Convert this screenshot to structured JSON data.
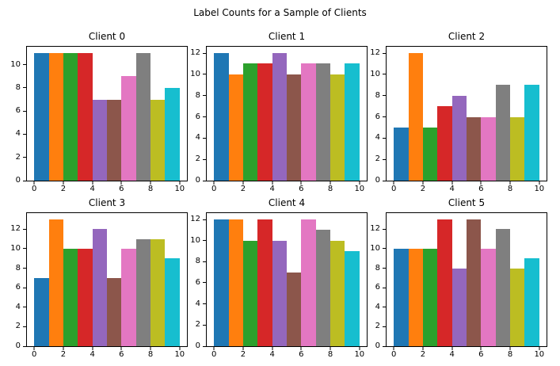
{
  "figure": {
    "suptitle": "Label Counts for a Sample of Clients",
    "background_color": "#ffffff",
    "frame_color": "#000000",
    "text_color": "#000000"
  },
  "palette": [
    "#1f77b4",
    "#ff7f0e",
    "#2ca02c",
    "#d62728",
    "#9467bd",
    "#8c564b",
    "#e377c2",
    "#7f7f7f",
    "#bcbd22",
    "#17becf"
  ],
  "chart_data": [
    {
      "type": "bar",
      "title": "Client 0",
      "categories": [
        0,
        1,
        2,
        3,
        4,
        5,
        6,
        7,
        8,
        9
      ],
      "values": [
        11,
        11,
        11,
        11,
        7,
        7,
        9,
        11,
        7,
        8
      ],
      "xlabel": "",
      "ylabel": "",
      "xticks": [
        0,
        2,
        4,
        6,
        8,
        10
      ],
      "yticks": [
        0,
        2,
        4,
        6,
        8,
        10
      ],
      "xlim": [
        -0.5,
        10.5
      ],
      "ylim": [
        0,
        11.55
      ],
      "grid": false,
      "legend": null
    },
    {
      "type": "bar",
      "title": "Client 1",
      "categories": [
        0,
        1,
        2,
        3,
        4,
        5,
        6,
        7,
        8,
        9
      ],
      "values": [
        12,
        10,
        11,
        11,
        12,
        10,
        11,
        11,
        10,
        11
      ],
      "xlabel": "",
      "ylabel": "",
      "xticks": [
        0,
        2,
        4,
        6,
        8,
        10
      ],
      "yticks": [
        0,
        2,
        4,
        6,
        8,
        10,
        12
      ],
      "xlim": [
        -0.5,
        10.5
      ],
      "ylim": [
        0,
        12.6
      ],
      "grid": false,
      "legend": null
    },
    {
      "type": "bar",
      "title": "Client 2",
      "categories": [
        0,
        1,
        2,
        3,
        4,
        5,
        6,
        7,
        8,
        9
      ],
      "values": [
        5,
        12,
        5,
        7,
        8,
        6,
        6,
        9,
        6,
        9
      ],
      "xlabel": "",
      "ylabel": "",
      "xticks": [
        0,
        2,
        4,
        6,
        8,
        10
      ],
      "yticks": [
        0,
        2,
        4,
        6,
        8,
        10,
        12
      ],
      "xlim": [
        -0.5,
        10.5
      ],
      "ylim": [
        0,
        12.6
      ],
      "grid": false,
      "legend": null
    },
    {
      "type": "bar",
      "title": "Client 3",
      "categories": [
        0,
        1,
        2,
        3,
        4,
        5,
        6,
        7,
        8,
        9
      ],
      "values": [
        7,
        13,
        10,
        10,
        12,
        7,
        10,
        11,
        11,
        9
      ],
      "xlabel": "",
      "ylabel": "",
      "xticks": [
        0,
        2,
        4,
        6,
        8,
        10
      ],
      "yticks": [
        0,
        2,
        4,
        6,
        8,
        10,
        12
      ],
      "xlim": [
        -0.5,
        10.5
      ],
      "ylim": [
        0,
        13.65
      ],
      "grid": false,
      "legend": null
    },
    {
      "type": "bar",
      "title": "Client 4",
      "categories": [
        0,
        1,
        2,
        3,
        4,
        5,
        6,
        7,
        8,
        9
      ],
      "values": [
        12,
        12,
        10,
        12,
        10,
        7,
        12,
        11,
        10,
        9
      ],
      "xlabel": "",
      "ylabel": "",
      "xticks": [
        0,
        2,
        4,
        6,
        8,
        10
      ],
      "yticks": [
        0,
        2,
        4,
        6,
        8,
        10,
        12
      ],
      "xlim": [
        -0.5,
        10.5
      ],
      "ylim": [
        0,
        12.6
      ],
      "grid": false,
      "legend": null
    },
    {
      "type": "bar",
      "title": "Client 5",
      "categories": [
        0,
        1,
        2,
        3,
        4,
        5,
        6,
        7,
        8,
        9
      ],
      "values": [
        10,
        10,
        10,
        13,
        8,
        13,
        10,
        12,
        8,
        9
      ],
      "xlabel": "",
      "ylabel": "",
      "xticks": [
        0,
        2,
        4,
        6,
        8,
        10
      ],
      "yticks": [
        0,
        2,
        4,
        6,
        8,
        10,
        12
      ],
      "xlim": [
        -0.5,
        10.5
      ],
      "ylim": [
        0,
        13.65
      ],
      "grid": false,
      "legend": null
    }
  ]
}
